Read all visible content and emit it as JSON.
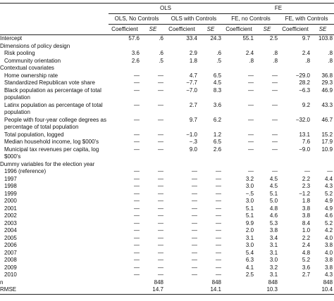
{
  "table": {
    "groups": [
      "OLS",
      "FE"
    ],
    "models": [
      "OLS, No Controls",
      "OLS with Controls",
      "FE, no Controls",
      "FE, with Controls"
    ],
    "stats": [
      "Coefficient",
      "SE"
    ],
    "rows": [
      {
        "label": "Intercept",
        "cells": [
          "57.6",
          ".6",
          "33.4",
          "24.3",
          "55.1",
          "2.5",
          "9.7",
          "103.8"
        ]
      },
      {
        "section": "Dimensions of policy design"
      },
      {
        "label": "Risk pooling",
        "cells": [
          "3.6",
          ".6",
          "2.9",
          ".6",
          "2.4",
          ".8",
          "2.4",
          ".8"
        ]
      },
      {
        "label": "Community orientation",
        "cells": [
          "2.6",
          ".5",
          "1.8",
          ".5",
          ".8",
          ".8",
          ".8",
          ".8"
        ]
      },
      {
        "section": "Contextual covariates"
      },
      {
        "label": "Home ownership rate",
        "cells": [
          "—",
          "—",
          "4.7",
          "6.5",
          "—",
          "—",
          "−29.0",
          "36.8"
        ]
      },
      {
        "label": "Standardized Republican vote share",
        "cells": [
          "—",
          "—",
          "−7.7",
          "4.5",
          "—",
          "—",
          "28.2",
          "29.3"
        ]
      },
      {
        "label": "Black population as percentage of total population",
        "cells": [
          "—",
          "—",
          "−7.0",
          "8.3",
          "—",
          "—",
          "−6.3",
          "46.9"
        ]
      },
      {
        "label": "Latinx population as percentage of total population",
        "cells": [
          "—",
          "—",
          "2.7",
          "3.6",
          "—",
          "—",
          "9.2",
          "43.3"
        ]
      },
      {
        "label": "People with four-year college degrees as percentage of total population",
        "cells": [
          "—",
          "—",
          "9.7",
          "6.2",
          "—",
          "—",
          "−32.0",
          "46.7"
        ]
      },
      {
        "label": "Total population, logged",
        "cells": [
          "—",
          "—",
          "−1.0",
          "1.2",
          "—",
          "—",
          "13.1",
          "15.2"
        ]
      },
      {
        "label": "Median household income, log $000's",
        "cells": [
          "—",
          "—",
          "−.3",
          "6.5",
          "—",
          "—",
          "7.6",
          "17.9"
        ]
      },
      {
        "label": "Municipal tax revenues per capita, log $000's",
        "cells": [
          "—",
          "—",
          "9.0",
          "2.6",
          "—",
          "—",
          "−9.0",
          "10.9"
        ]
      },
      {
        "section": "Dummy variables for the election year"
      },
      {
        "label": "1996 (reference)",
        "cells": [
          "—",
          "—",
          "—",
          "—",
          "—",
          "—",
          "—",
          "—"
        ]
      },
      {
        "label": "1997",
        "cells": [
          "—",
          "—",
          "—",
          "—",
          "3.2",
          "4.5",
          "2.2",
          "4.4"
        ]
      },
      {
        "label": "1998",
        "cells": [
          "—",
          "—",
          "—",
          "—",
          "3.0",
          "4.5",
          "2.3",
          "4.3"
        ]
      },
      {
        "label": "1999",
        "cells": [
          "—",
          "—",
          "—",
          "—",
          "−.5",
          "5.1",
          "−1.2",
          "5.2"
        ]
      },
      {
        "label": "2000",
        "cells": [
          "—",
          "—",
          "—",
          "—",
          "3.0",
          "5.0",
          "1.8",
          "4.9"
        ]
      },
      {
        "label": "2001",
        "cells": [
          "—",
          "—",
          "—",
          "—",
          "5.1",
          "4.8",
          "3.8",
          "4.9"
        ]
      },
      {
        "label": "2002",
        "cells": [
          "—",
          "—",
          "—",
          "—",
          "5.1",
          "4.6",
          "3.8",
          "4.6"
        ]
      },
      {
        "label": "2003",
        "cells": [
          "—",
          "—",
          "—",
          "—",
          "9.9",
          "5.3",
          "8.4",
          "5.2"
        ]
      },
      {
        "label": "2004",
        "cells": [
          "—",
          "—",
          "—",
          "—",
          "2.0",
          "3.8",
          "1.0",
          "4.2"
        ]
      },
      {
        "label": "2005",
        "cells": [
          "—",
          "—",
          "—",
          "—",
          "3.1",
          "3.4",
          "2.2",
          "4.0"
        ]
      },
      {
        "label": "2006",
        "cells": [
          "—",
          "—",
          "—",
          "—",
          "3.0",
          "3.1",
          "2.4",
          "3.8"
        ]
      },
      {
        "label": "2007",
        "cells": [
          "—",
          "—",
          "—",
          "—",
          "5.4",
          "3.1",
          "4.8",
          "4.0"
        ]
      },
      {
        "label": "2008",
        "cells": [
          "—",
          "—",
          "—",
          "—",
          "6.3",
          "3.0",
          "5.2",
          "3.8"
        ]
      },
      {
        "label": "2009",
        "cells": [
          "—",
          "—",
          "—",
          "—",
          "4.1",
          "3.2",
          "3.6",
          "3.8"
        ]
      },
      {
        "label": "2010",
        "cells": [
          "—",
          "—",
          "—",
          "—",
          "2.5",
          "3.1",
          "2.7",
          "4.3"
        ]
      },
      {
        "label": "n",
        "cells": [
          "848",
          "848",
          "848",
          "848"
        ]
      },
      {
        "label": "RMSE",
        "cells": [
          "14.7",
          "14.1",
          "10.3",
          "10.4"
        ]
      }
    ]
  }
}
